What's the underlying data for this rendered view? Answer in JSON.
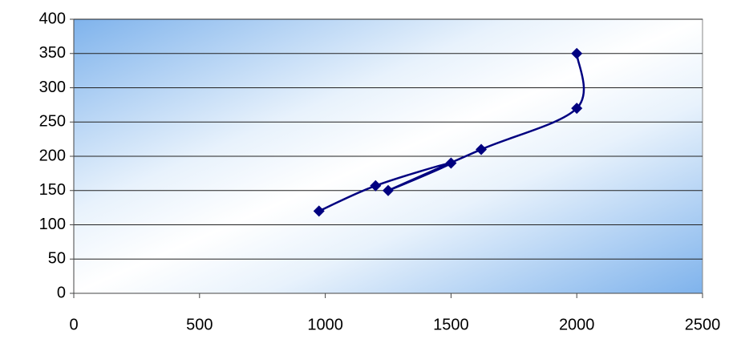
{
  "chart_data": {
    "type": "scatter",
    "lines": "smooth",
    "x": [
      975,
      1200,
      1500,
      1250,
      1620,
      2000,
      2000
    ],
    "values": [
      120,
      157,
      190,
      150,
      210,
      270,
      350
    ],
    "color": "#000080",
    "xlim": [
      0,
      2500
    ],
    "xticks": [
      0,
      500,
      1000,
      1500,
      2000,
      2500
    ],
    "ylim": [
      0,
      400
    ],
    "yticks": [
      0,
      50,
      100,
      150,
      200,
      250,
      300,
      350,
      400
    ],
    "grid": true
  }
}
